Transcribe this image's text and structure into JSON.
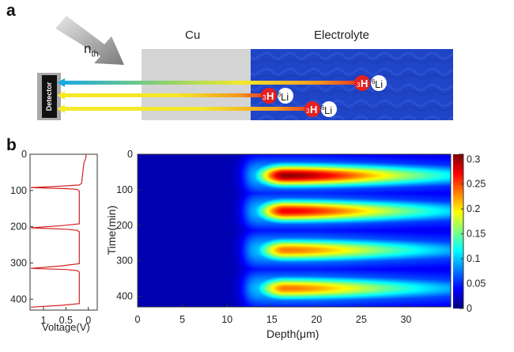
{
  "panel_a": {
    "letter": "a",
    "cu_label": "Cu",
    "electrolyte_label": "Electrolyte",
    "neutron_label": "n",
    "neutron_subscript": "th",
    "detector_label": "Detector",
    "particles": [
      {
        "triton": "H",
        "triton_mass": "3",
        "lithium": "Li",
        "lithium_mass": "6"
      },
      {
        "triton": "H",
        "triton_mass": "3",
        "lithium": "Li",
        "lithium_mass": "6"
      },
      {
        "triton": "H",
        "triton_mass": "3",
        "lithium": "Li",
        "lithium_mass": "6"
      }
    ],
    "colors": {
      "cu": "#d4d4d4",
      "electrolyte": "#1f44c6",
      "triton": "#e52020",
      "lithium": "#ffffff",
      "detector": "#111111"
    }
  },
  "panel_b": {
    "letter": "b",
    "voltage_plot": {
      "xlabel": "Voltage(V)",
      "x_ticks": [
        "1",
        "0.5",
        "0"
      ],
      "y_ticks": [
        "0",
        "100",
        "200",
        "300",
        "400"
      ],
      "xlim": [
        1.3,
        -0.2
      ],
      "ylim": [
        0,
        430
      ],
      "line_color": "#d42020",
      "voltage_profile": [
        [
          0.05,
          0
        ],
        [
          0.05,
          8
        ],
        [
          0.1,
          25
        ],
        [
          0.15,
          80
        ],
        [
          0.2,
          85
        ],
        [
          0.35,
          86
        ],
        [
          0.6,
          88
        ],
        [
          1.28,
          92
        ],
        [
          0.5,
          95
        ],
        [
          0.25,
          97
        ],
        [
          0.2,
          102
        ],
        [
          0.2,
          150
        ],
        [
          0.2,
          175
        ],
        [
          0.2,
          192
        ],
        [
          0.6,
          197
        ],
        [
          1.28,
          203
        ],
        [
          0.5,
          207
        ],
        [
          0.25,
          210
        ],
        [
          0.2,
          214
        ],
        [
          0.2,
          250
        ],
        [
          0.2,
          290
        ],
        [
          0.2,
          302
        ],
        [
          0.6,
          308
        ],
        [
          1.28,
          315
        ],
        [
          0.5,
          318
        ],
        [
          0.25,
          321
        ],
        [
          0.2,
          325
        ],
        [
          0.2,
          380
        ],
        [
          0.2,
          405
        ],
        [
          0.2,
          412
        ],
        [
          0.6,
          417
        ],
        [
          1.28,
          422
        ]
      ]
    },
    "heatmap": {
      "type": "heatmap",
      "xlabel": "Depth(μm)",
      "ylabel": "Time(min)",
      "x_ticks": [
        "0",
        "5",
        "10",
        "15",
        "20",
        "25",
        "30"
      ],
      "y_ticks": [
        "0",
        "100",
        "200",
        "300",
        "400"
      ],
      "xlim": [
        0,
        35
      ],
      "ylim": [
        0,
        430
      ],
      "colorbar_ticks": [
        "0.3",
        "0.25",
        "0.2",
        "0.15",
        "0.1",
        "0.05",
        "0"
      ],
      "colorbar_range": [
        0,
        0.31
      ],
      "background_level": 0.015,
      "electrolyte_start_depth": 12.0,
      "peak_depth": 16.5,
      "cycles": [
        {
          "center_time": 60,
          "peak_value": 0.29
        },
        {
          "center_time": 160,
          "peak_value": 0.26
        },
        {
          "center_time": 270,
          "peak_value": 0.22
        },
        {
          "center_time": 378,
          "peak_value": 0.22
        }
      ]
    }
  }
}
